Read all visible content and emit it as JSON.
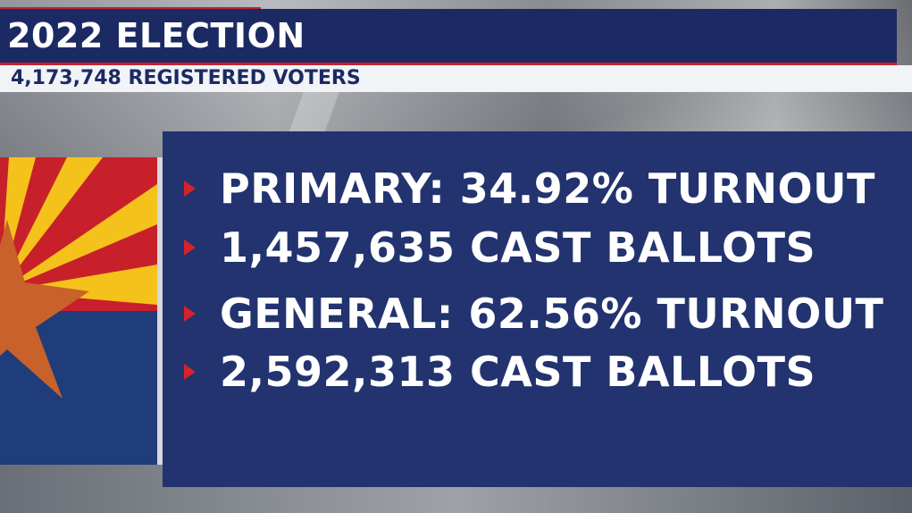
{
  "header": {
    "title": "2022 ELECTION",
    "subtitle": "4,173,748 REGISTERED VOTERS"
  },
  "stats": [
    {
      "text": "PRIMARY: 34.92% TURNOUT"
    },
    {
      "text": "1,457,635 CAST BALLOTS"
    },
    {
      "text": "GENERAL: 62.56% TURNOUT"
    },
    {
      "text": "2,592,313 CAST BALLOTS"
    }
  ],
  "colors": {
    "navy": "#1c2a63",
    "panel": "#22336f",
    "accent_red": "#c8202b",
    "flag_red": "#c8202b",
    "flag_yellow": "#f4c21b",
    "flag_blue": "#1e3d7a",
    "flag_copper": "#c8612a"
  },
  "icons": {
    "flag": "arizona-flag-icon",
    "bullet": "triangle-bullet-icon"
  }
}
